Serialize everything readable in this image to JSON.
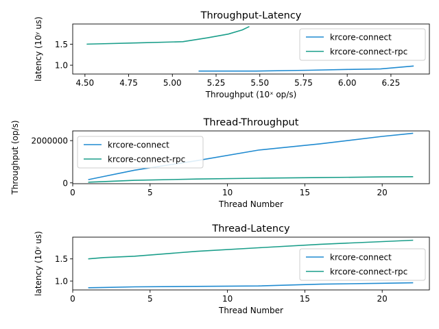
{
  "chart_data": [
    {
      "type": "line",
      "title": "Throughput-Latency",
      "xlabel": "Throughput (10ˣ op/s)",
      "ylabel": "latency (10ʸ us)",
      "xlim": [
        4.43,
        6.47
      ],
      "ylim": [
        0.79,
        1.98
      ],
      "xticks": [
        4.5,
        4.75,
        5.0,
        5.25,
        5.5,
        5.75,
        6.0,
        6.25
      ],
      "xtick_labels": [
        "4.50",
        "4.75",
        "5.00",
        "5.25",
        "5.50",
        "5.75",
        "6.00",
        "6.25"
      ],
      "yticks": [
        1.0,
        1.5
      ],
      "ytick_labels": [
        "1.0",
        "1.5"
      ],
      "legend": "top-right",
      "grid": false,
      "series": [
        {
          "name": "krcore-connect",
          "color": "#1f8ad0",
          "x": [
            5.15,
            5.48,
            5.78,
            6.0,
            6.19,
            6.38
          ],
          "y": [
            0.86,
            0.86,
            0.88,
            0.9,
            0.91,
            0.98
          ]
        },
        {
          "name": "krcore-connect-rpc",
          "color": "#1a9e8a",
          "x": [
            4.51,
            4.8,
            5.06,
            5.2,
            5.32,
            5.4,
            5.44
          ],
          "y": [
            1.5,
            1.53,
            1.56,
            1.65,
            1.74,
            1.84,
            1.92
          ]
        }
      ]
    },
    {
      "type": "line",
      "title": "Thread-Throughput",
      "xlabel": "Thread Number",
      "ylabel": "Throughput (op/s)",
      "xlim": [
        0.0,
        23.05
      ],
      "ylim": [
        -40000,
        2460000
      ],
      "xticks": [
        0,
        5,
        10,
        15,
        20
      ],
      "xtick_labels": [
        "0",
        "5",
        "10",
        "15",
        "20"
      ],
      "yticks": [
        0,
        2000000
      ],
      "ytick_labels": [
        "0",
        "2000000"
      ],
      "legend": "top-left",
      "grid": false,
      "series": [
        {
          "name": "krcore-connect",
          "color": "#1f8ad0",
          "x": [
            1,
            2,
            4,
            8,
            12,
            16,
            20,
            22
          ],
          "y": [
            150000,
            300000,
            600000,
            1050000,
            1550000,
            1850000,
            2200000,
            2350000
          ]
        },
        {
          "name": "krcore-connect-rpc",
          "color": "#1a9e8a",
          "x": [
            1,
            2,
            4,
            8,
            12,
            16,
            20,
            22
          ],
          "y": [
            30000,
            60000,
            120000,
            180000,
            220000,
            250000,
            280000,
            290000
          ]
        }
      ]
    },
    {
      "type": "line",
      "title": "Thread-Latency",
      "xlabel": "Thread Number",
      "ylabel": "latency (10ʸ us)",
      "xlim": [
        0.0,
        23.05
      ],
      "ylim": [
        0.8,
        1.99
      ],
      "xticks": [
        0,
        5,
        10,
        15,
        20
      ],
      "xtick_labels": [
        "0",
        "5",
        "10",
        "15",
        "20"
      ],
      "yticks": [
        1.0,
        1.5
      ],
      "ytick_labels": [
        "1.0",
        "1.5"
      ],
      "legend": "right",
      "grid": false,
      "series": [
        {
          "name": "krcore-connect",
          "color": "#1f8ad0",
          "x": [
            1,
            2,
            4,
            8,
            12,
            16,
            20,
            22
          ],
          "y": [
            0.85,
            0.855,
            0.87,
            0.88,
            0.89,
            0.93,
            0.95,
            0.96
          ]
        },
        {
          "name": "krcore-connect-rpc",
          "color": "#1a9e8a",
          "x": [
            1,
            2,
            4,
            8,
            12,
            16,
            20,
            22
          ],
          "y": [
            1.5,
            1.53,
            1.56,
            1.67,
            1.75,
            1.83,
            1.89,
            1.92
          ]
        }
      ]
    }
  ]
}
